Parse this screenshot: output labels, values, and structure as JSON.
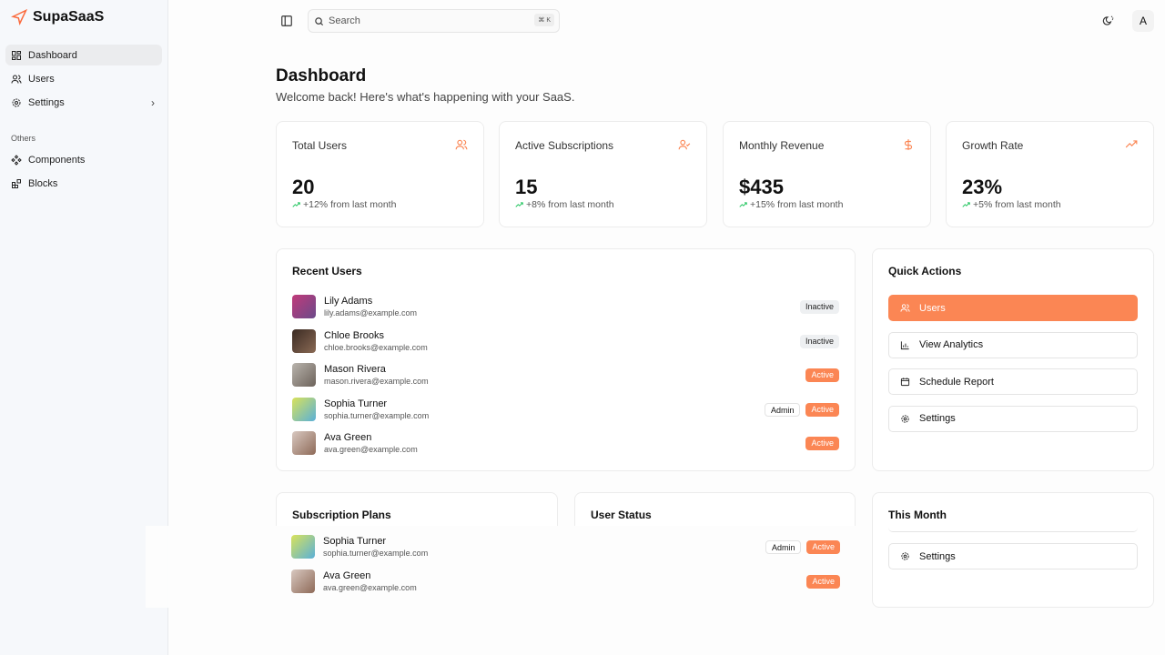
{
  "app": {
    "name": "SupaSaaS",
    "accent": "#fb8654"
  },
  "sidebar": {
    "items": [
      {
        "label": "Dashboard",
        "icon": "layout-dashboard-icon",
        "active": true
      },
      {
        "label": "Users",
        "icon": "users-icon"
      },
      {
        "label": "Settings",
        "icon": "settings-icon",
        "has_submenu": true
      }
    ],
    "group_label": "Others",
    "others": [
      {
        "label": "Components",
        "icon": "components-icon"
      },
      {
        "label": "Blocks",
        "icon": "blocks-icon"
      }
    ]
  },
  "topbar": {
    "search_placeholder": "Search",
    "shortcut": "⌘ K",
    "avatar_initial": "A"
  },
  "page": {
    "title": "Dashboard",
    "subtitle": "Welcome back! Here's what's happening with your SaaS."
  },
  "stats": [
    {
      "title": "Total Users",
      "value": "20",
      "delta": "+12% from last month",
      "icon": "users-icon"
    },
    {
      "title": "Active Subscriptions",
      "value": "15",
      "delta": "+8% from last month",
      "icon": "user-check-icon"
    },
    {
      "title": "Monthly Revenue",
      "value": "$435",
      "delta": "+15% from last month",
      "icon": "dollar-icon"
    },
    {
      "title": "Growth Rate",
      "value": "23%",
      "delta": "+5% from last month",
      "icon": "trending-up-icon"
    }
  ],
  "recent_users": {
    "title": "Recent Users",
    "users": [
      {
        "name": "Lily Adams",
        "email": "lily.adams@example.com",
        "status": "Inactive"
      },
      {
        "name": "Chloe Brooks",
        "email": "chloe.brooks@example.com",
        "status": "Inactive"
      },
      {
        "name": "Mason Rivera",
        "email": "mason.rivera@example.com",
        "status": "Active"
      },
      {
        "name": "Sophia Turner",
        "email": "sophia.turner@example.com",
        "role": "Admin",
        "status": "Active"
      },
      {
        "name": "Ava Green",
        "email": "ava.green@example.com",
        "status": "Active"
      }
    ]
  },
  "quick_actions": {
    "title": "Quick Actions",
    "items": [
      {
        "label": "Users",
        "icon": "users-icon"
      },
      {
        "label": "View Analytics",
        "icon": "bar-chart-icon"
      },
      {
        "label": "Schedule Report",
        "icon": "calendar-icon"
      },
      {
        "label": "Settings",
        "icon": "settings-icon"
      }
    ]
  },
  "bottom": {
    "subscription_title": "Subscription Plans",
    "status_title": "User Status",
    "month_title": "This Month",
    "month_action": "Settings",
    "overlay_users": [
      {
        "name": "Sophia Turner",
        "email": "sophia.turner@example.com",
        "role": "Admin",
        "status": "Active"
      },
      {
        "name": "Ava Green",
        "email": "ava.green@example.com",
        "status": "Active"
      }
    ]
  }
}
